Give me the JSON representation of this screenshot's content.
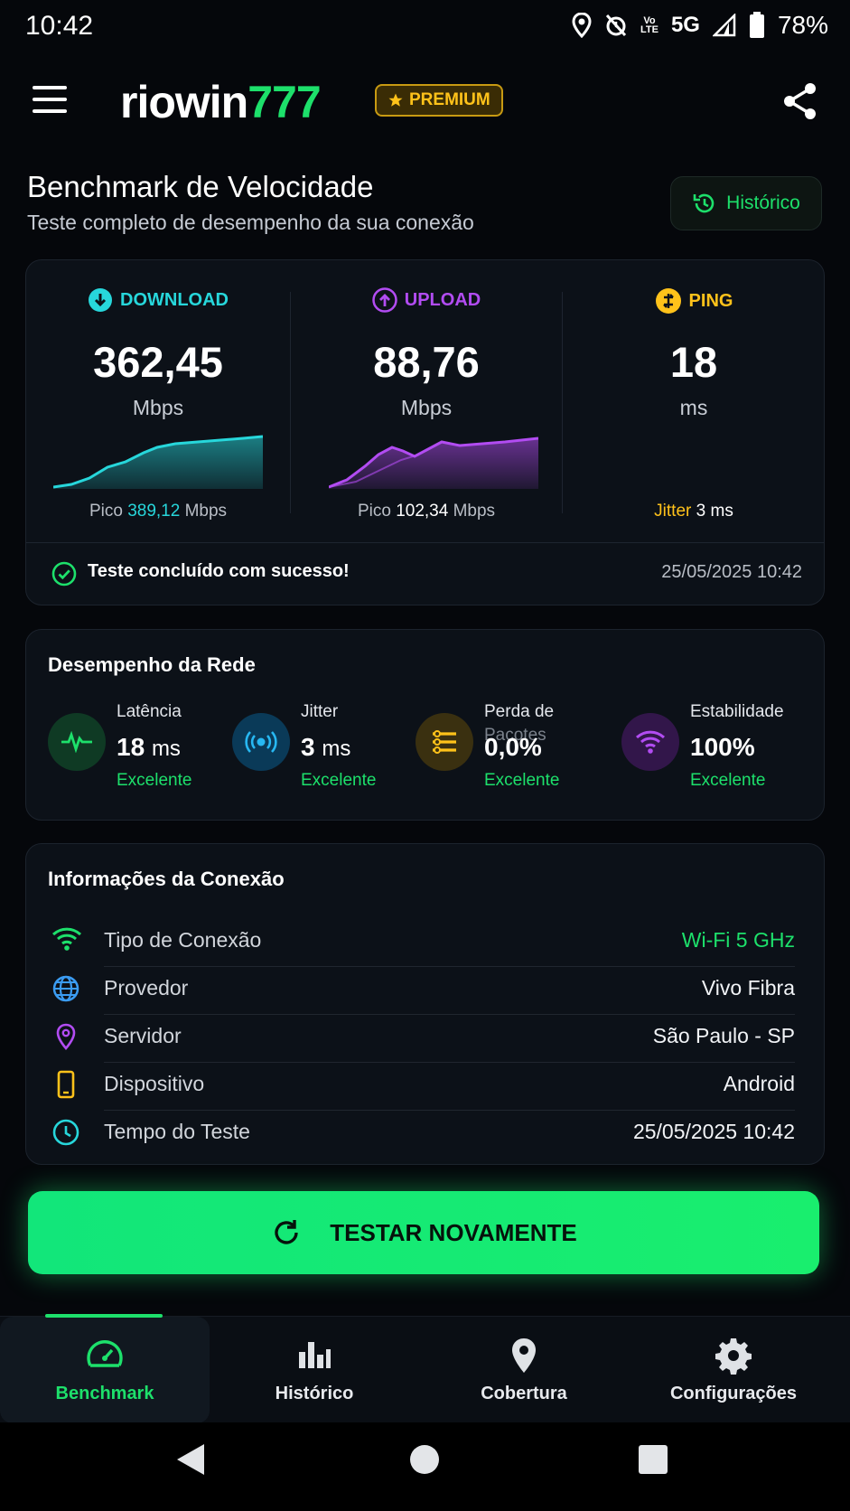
{
  "status": {
    "time": "10:42",
    "lte": "Vo\nLTE",
    "network": "5G",
    "battery": "78%"
  },
  "app": {
    "logo_main": "riowin",
    "logo_num": "777",
    "premium": "PREMIUM",
    "accent": "#1de06b"
  },
  "header": {
    "title": "Benchmark de Velocidade",
    "subtitle": "Teste completo de desempenho da sua conexão",
    "history_button": "Histórico"
  },
  "speed": {
    "download": {
      "label": "DOWNLOAD",
      "value": "362,45",
      "unit": "Mbps",
      "peak_prefix": "Pico",
      "peak_value": "389,12",
      "peak_unit": "Mbps",
      "color": "#27d7db"
    },
    "upload": {
      "label": "UPLOAD",
      "value": "88,76",
      "unit": "Mbps",
      "peak_prefix": "Pico",
      "peak_value": "102,34",
      "peak_unit": "Mbps",
      "color": "#b24cf2"
    },
    "ping": {
      "label": "PING",
      "value": "18",
      "unit": "ms",
      "jitter_label": "Jitter",
      "jitter_value": "3 ms",
      "color": "#ffc21a"
    },
    "status_text": "Teste concluído com sucesso!",
    "status_date": "25/05/2025 10:42"
  },
  "performance": {
    "title": "Desempenho da Rede",
    "items": [
      {
        "label": "Latência",
        "value": "18",
        "unit": "ms",
        "status": "Excelente",
        "icon": "pulse-icon"
      },
      {
        "label": "Jitter",
        "value": "3",
        "unit": "ms",
        "status": "Excelente",
        "icon": "signal-waves-icon"
      },
      {
        "label": "Perda de",
        "label2": "Pacotes",
        "value": "0,0%",
        "unit": "",
        "status": "Excelente",
        "icon": "packet-list-icon"
      },
      {
        "label": "Estabilidade",
        "value": "100%",
        "unit": "",
        "status": "Excelente",
        "icon": "wifi-icon"
      }
    ]
  },
  "connection": {
    "title": "Informações da Conexão",
    "rows": [
      {
        "key": "Tipo de Conexão",
        "value": "Wi-Fi 5 GHz",
        "icon": "wifi-icon"
      },
      {
        "key": "Provedor",
        "value": "Vivo Fibra",
        "icon": "globe-icon"
      },
      {
        "key": "Servidor",
        "value": "São Paulo - SP",
        "icon": "location-pin-icon"
      },
      {
        "key": "Dispositivo",
        "value": "Android",
        "icon": "phone-icon"
      },
      {
        "key": "Tempo do Teste",
        "value": "25/05/2025 10:42",
        "icon": "clock-icon"
      }
    ]
  },
  "actions": {
    "test_again": "TESTAR NOVAMENTE"
  },
  "nav": {
    "items": [
      {
        "label": "Benchmark",
        "icon": "speedometer-icon"
      },
      {
        "label": "Histórico",
        "icon": "bar-chart-icon"
      },
      {
        "label": "Cobertura",
        "icon": "map-pin-icon"
      },
      {
        "label": "Configurações",
        "icon": "gear-icon"
      }
    ]
  }
}
